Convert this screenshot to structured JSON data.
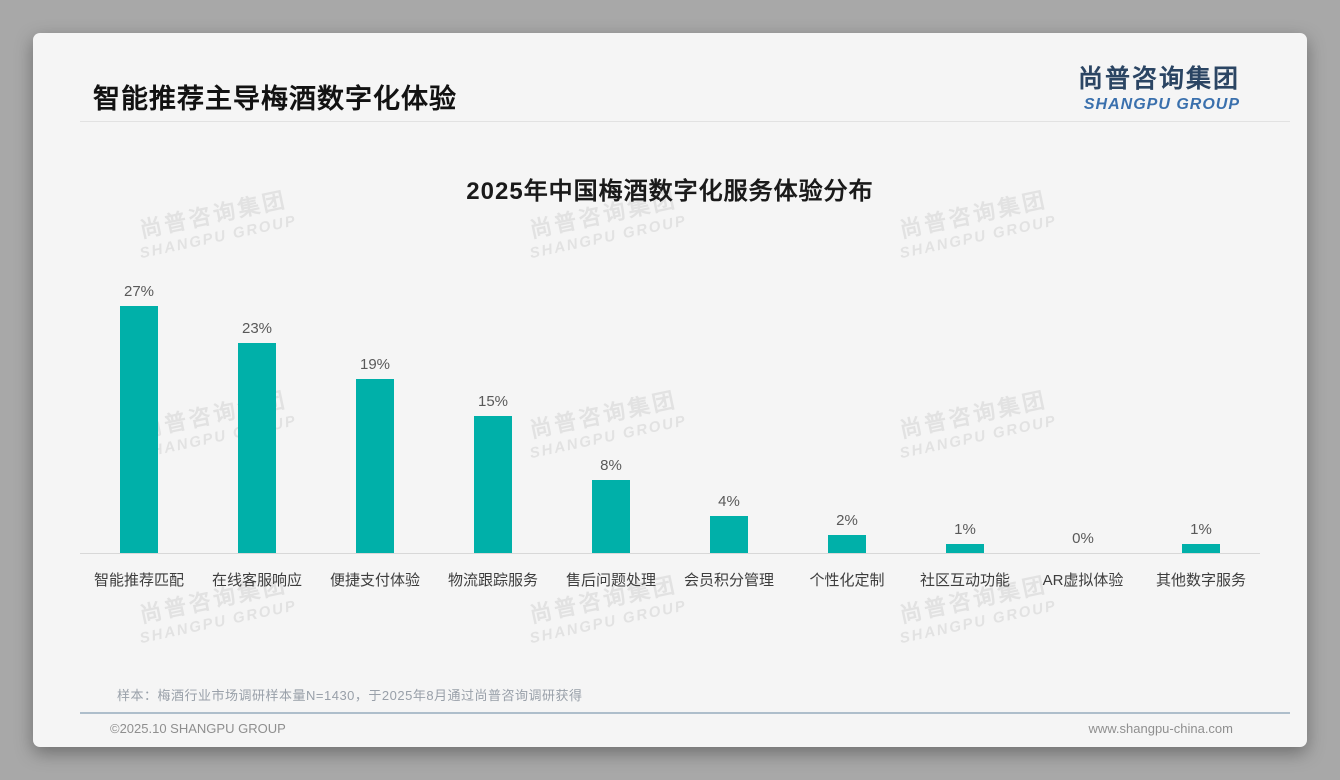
{
  "page": {
    "title": "智能推荐主导梅酒数字化体验",
    "logo": {
      "cn": "尚普咨询集团",
      "en": "SHANGPU GROUP"
    },
    "watermark": {
      "line1": "尚普咨询集团",
      "line2": "SHANGPU GROUP"
    },
    "footnote": "样本：梅酒行业市场调研样本量N=1430，于2025年8月通过尚普咨询调研获得",
    "footer_left": "©2025.10 SHANGPU GROUP",
    "footer_right": "www.shangpu-china.com"
  },
  "colors": {
    "bar": "#00b0a9",
    "logo_cn": "#2b4563",
    "logo_en": "#3a70ad",
    "card_background": "#f5f5f5"
  },
  "chart_data": {
    "type": "bar",
    "title": "2025年中国梅酒数字化服务体验分布",
    "categories": [
      "智能推荐匹配",
      "在线客服响应",
      "便捷支付体验",
      "物流跟踪服务",
      "售后问题处理",
      "会员积分管理",
      "个性化定制",
      "社区互动功能",
      "AR虚拟体验",
      "其他数字服务"
    ],
    "values": [
      27,
      23,
      19,
      15,
      8,
      4,
      2,
      1,
      0,
      1
    ],
    "value_labels": [
      "27%",
      "23%",
      "19%",
      "15%",
      "8%",
      "4%",
      "2%",
      "1%",
      "0%",
      "1%"
    ],
    "xlabel": "",
    "ylabel": "",
    "ylim": [
      0,
      30
    ],
    "grid": false,
    "legend": false,
    "bar_color": "#00b0a9"
  }
}
